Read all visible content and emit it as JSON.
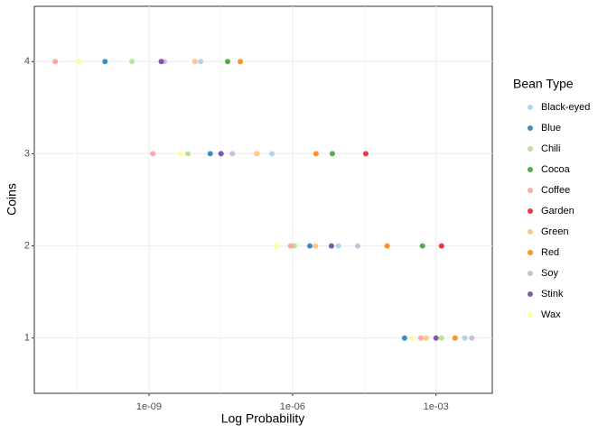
{
  "chart_data": {
    "type": "scatter",
    "x_label": "Log Probability",
    "y_label": "Coins",
    "legend_title": "Bean Type",
    "xscale": "log",
    "grid": true,
    "legend_position": "right",
    "xlim": [
      4e-12,
      0.015
    ],
    "xticks": [
      {
        "value": 1e-09,
        "label": "1e-09"
      },
      {
        "value": 1e-06,
        "label": "1e-06"
      },
      {
        "value": 0.001,
        "label": "1e-03"
      }
    ],
    "ylim": [
      0.4,
      4.6
    ],
    "yticks": [
      1,
      2,
      3,
      4
    ],
    "series": [
      {
        "name": "Black-eyed",
        "color": "#a6cee3",
        "x": [
          0.004,
          9.1e-06,
          3.7e-07,
          1.2e-08
        ],
        "values": [
          1,
          2,
          3,
          4
        ]
      },
      {
        "name": "Blue",
        "color": "#1f78b4",
        "x": [
          0.00022,
          2.3e-06,
          1.9e-08,
          1.2e-10
        ],
        "values": [
          1,
          2,
          3,
          4
        ]
      },
      {
        "name": "Chili",
        "color": "#b2df8a",
        "x": [
          0.0013,
          1.1e-06,
          6.5e-09,
          4.4e-10
        ],
        "values": [
          1,
          2,
          3,
          4
        ]
      },
      {
        "name": "Cocoa",
        "color": "#33a02c",
        "x": [
          0.00052,
          6.8e-06,
          4.4e-08
        ],
        "values": [
          2,
          3,
          4
        ]
      },
      {
        "name": "Coffee",
        "color": "#fb9a99",
        "x": [
          0.00048,
          9.1e-07,
          1.2e-09,
          1.1e-11
        ],
        "values": [
          1,
          2,
          3,
          4
        ]
      },
      {
        "name": "Garden",
        "color": "#e31a1c",
        "x": [
          0.0013,
          3.4e-05
        ],
        "values": [
          2,
          3
        ]
      },
      {
        "name": "Green",
        "color": "#fdbf6f",
        "x": [
          0.00062,
          3e-06,
          1.8e-07,
          9.1e-09
        ],
        "values": [
          1,
          2,
          3,
          4
        ]
      },
      {
        "name": "Red",
        "color": "#ff7f00",
        "x": [
          0.0025,
          9.5e-05,
          3.1e-06,
          8.1e-08
        ],
        "values": [
          1,
          2,
          3,
          4
        ]
      },
      {
        "name": "Soy",
        "color": "#cab2d6",
        "x": [
          0.0056,
          2.3e-05,
          5.5e-08,
          2.1e-09
        ],
        "values": [
          1,
          2,
          3,
          4
        ]
      },
      {
        "name": "Stink",
        "color": "#6a3d9a",
        "x": [
          0.001,
          6.5e-06,
          3.2e-08,
          1.8e-09
        ],
        "values": [
          1,
          2,
          3,
          4
        ]
      },
      {
        "name": "Wax",
        "color": "#ffff99",
        "x": [
          0.00032,
          4.6e-07,
          4.6e-09,
          3.4e-11
        ],
        "values": [
          1,
          2,
          3,
          4
        ]
      }
    ]
  }
}
